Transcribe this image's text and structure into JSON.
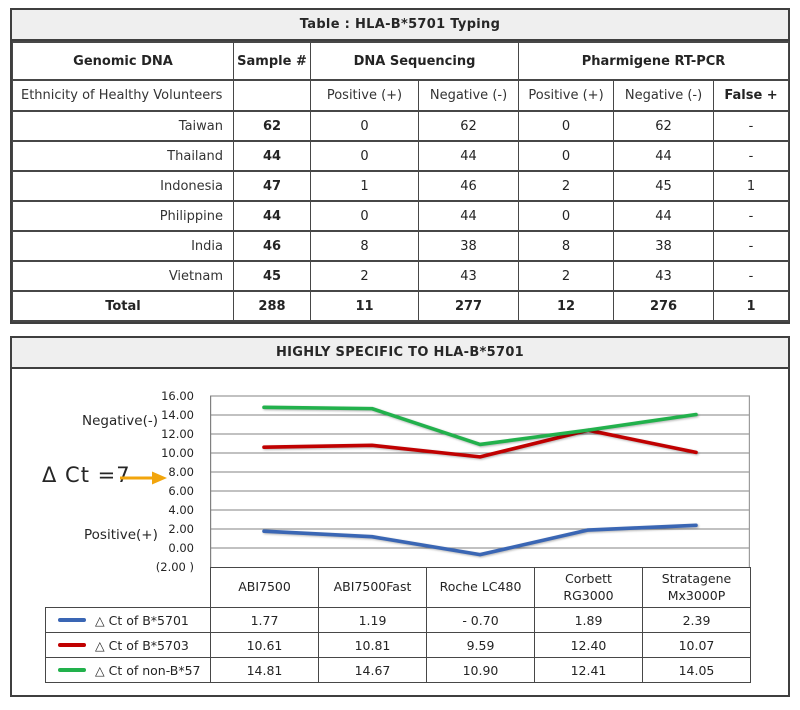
{
  "table1": {
    "title": "Table : HLA-B*5701 Typing",
    "header": {
      "genomic_dna": "Genomic DNA",
      "sample": "Sample #",
      "dna_sequencing": "DNA Sequencing",
      "pharmigene": "Pharmigene RT-PCR",
      "ethnicity": "Ethnicity of Healthy Volunteers",
      "positive": "Positive (+)",
      "negative": "Negative (-)",
      "false_positive": "False +"
    },
    "rows": [
      {
        "ethnicity": "Taiwan",
        "sample": "62",
        "seq_pos": "0",
        "seq_neg": "62",
        "pcr_pos": "0",
        "pcr_neg": "62",
        "false_pos": "-"
      },
      {
        "ethnicity": "Thailand",
        "sample": "44",
        "seq_pos": "0",
        "seq_neg": "44",
        "pcr_pos": "0",
        "pcr_neg": "44",
        "false_pos": "-"
      },
      {
        "ethnicity": "Indonesia",
        "sample": "47",
        "seq_pos": "1",
        "seq_neg": "46",
        "pcr_pos": "2",
        "pcr_neg": "45",
        "false_pos": "1"
      },
      {
        "ethnicity": "Philippine",
        "sample": "44",
        "seq_pos": "0",
        "seq_neg": "44",
        "pcr_pos": "0",
        "pcr_neg": "44",
        "false_pos": "-"
      },
      {
        "ethnicity": "India",
        "sample": "46",
        "seq_pos": "8",
        "seq_neg": "38",
        "pcr_pos": "8",
        "pcr_neg": "38",
        "false_pos": "-"
      },
      {
        "ethnicity": "Vietnam",
        "sample": "45",
        "seq_pos": "2",
        "seq_neg": "43",
        "pcr_pos": "2",
        "pcr_neg": "43",
        "false_pos": "-"
      }
    ],
    "total": {
      "ethnicity": "Total",
      "sample": "288",
      "seq_pos": "11",
      "seq_neg": "277",
      "pcr_pos": "12",
      "pcr_neg": "276",
      "false_pos": "1"
    }
  },
  "panel2": {
    "title": "HIGHLY SPECIFIC TO HLA-B*5701",
    "annotations": {
      "negative": "Negative(-)",
      "delta": "Δ Ct =7",
      "positive": "Positive(+)"
    },
    "chart_data": {
      "type": "line",
      "categories": [
        "ABI7500",
        "ABI7500Fast",
        "Roche LC480",
        "Corbett RG3000",
        "Stratagene Mx3000P"
      ],
      "categories_display": [
        "ABI7500",
        "ABI7500Fast",
        "Roche LC480",
        "Corbett\nRG3000",
        "Stratagene\nMx3000P"
      ],
      "series": [
        {
          "name": "△ Ct of B*5701",
          "color": "#3a66b4",
          "values": [
            1.77,
            1.19,
            -0.7,
            1.89,
            2.39
          ]
        },
        {
          "name": "△ Ct of B*5703",
          "color": "#c00000",
          "values": [
            10.61,
            10.81,
            9.59,
            12.4,
            10.07
          ]
        },
        {
          "name": "△ Ct of non-B*57",
          "color": "#22b14c",
          "values": [
            14.81,
            14.67,
            10.9,
            12.41,
            14.05
          ]
        }
      ],
      "value_display": [
        [
          "1.77",
          "1.19",
          "- 0.70",
          "1.89",
          "2.39"
        ],
        [
          "10.61",
          "10.81",
          "9.59",
          "12.40",
          "10.07"
        ],
        [
          "14.81",
          "14.67",
          "10.90",
          "12.41",
          "14.05"
        ]
      ],
      "y_ticks": [
        "16.00",
        "14.00",
        "12.00",
        "10.00",
        "8.00",
        "6.00",
        "4.00",
        "2.00",
        "0.00",
        "(2.00 )"
      ],
      "y_tick_values": [
        16,
        14,
        12,
        10,
        8,
        6,
        4,
        2,
        0,
        -2
      ],
      "ylim": [
        -2,
        16
      ],
      "grid": "horizontal",
      "legend_position": "bottom-table",
      "xlabel": "",
      "ylabel": ""
    },
    "colors": {
      "grid": "#9c9c9c",
      "axis": "#808080",
      "arrow_orange": "#f2a50c",
      "border": "#474747",
      "title_bg": "#efefef"
    }
  }
}
